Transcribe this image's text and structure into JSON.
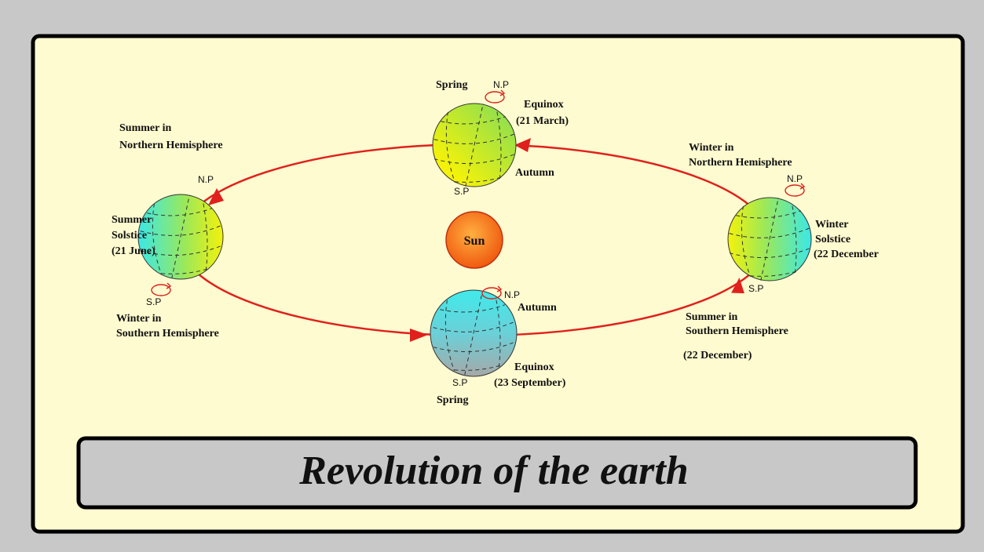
{
  "title": "Revolution of the earth",
  "sun": "Sun",
  "globes": [
    {
      "season_top": "Spring",
      "north_pole": "N.P",
      "event": [
        "Equinox",
        "(21 March)"
      ],
      "season_bottom": "Autumn",
      "south_pole": "S.P"
    },
    {
      "north_note": [
        "Summer in",
        "Northern Hemisphere"
      ],
      "north_pole": "N.P",
      "event": [
        "Summer",
        "Solstice",
        "(21 June)"
      ],
      "south_pole": "S.P",
      "south_note": [
        "Winter in",
        "Southern Hemisphere"
      ]
    },
    {
      "north_pole": "N.P",
      "season_top": "Autumn",
      "event": [
        "Equinox",
        "(23 September)"
      ],
      "south_pole": "S.P",
      "season_bottom": "Spring"
    },
    {
      "north_note": [
        "Winter in",
        "Northern Hemisphere"
      ],
      "north_pole": "N.P",
      "event": [
        "Winter",
        "Solstice",
        "(22 December"
      ],
      "south_pole": "S.P",
      "south_note": [
        "Summer in",
        "Southern Hemisphere"
      ],
      "date_note": "(22 December)"
    }
  ]
}
